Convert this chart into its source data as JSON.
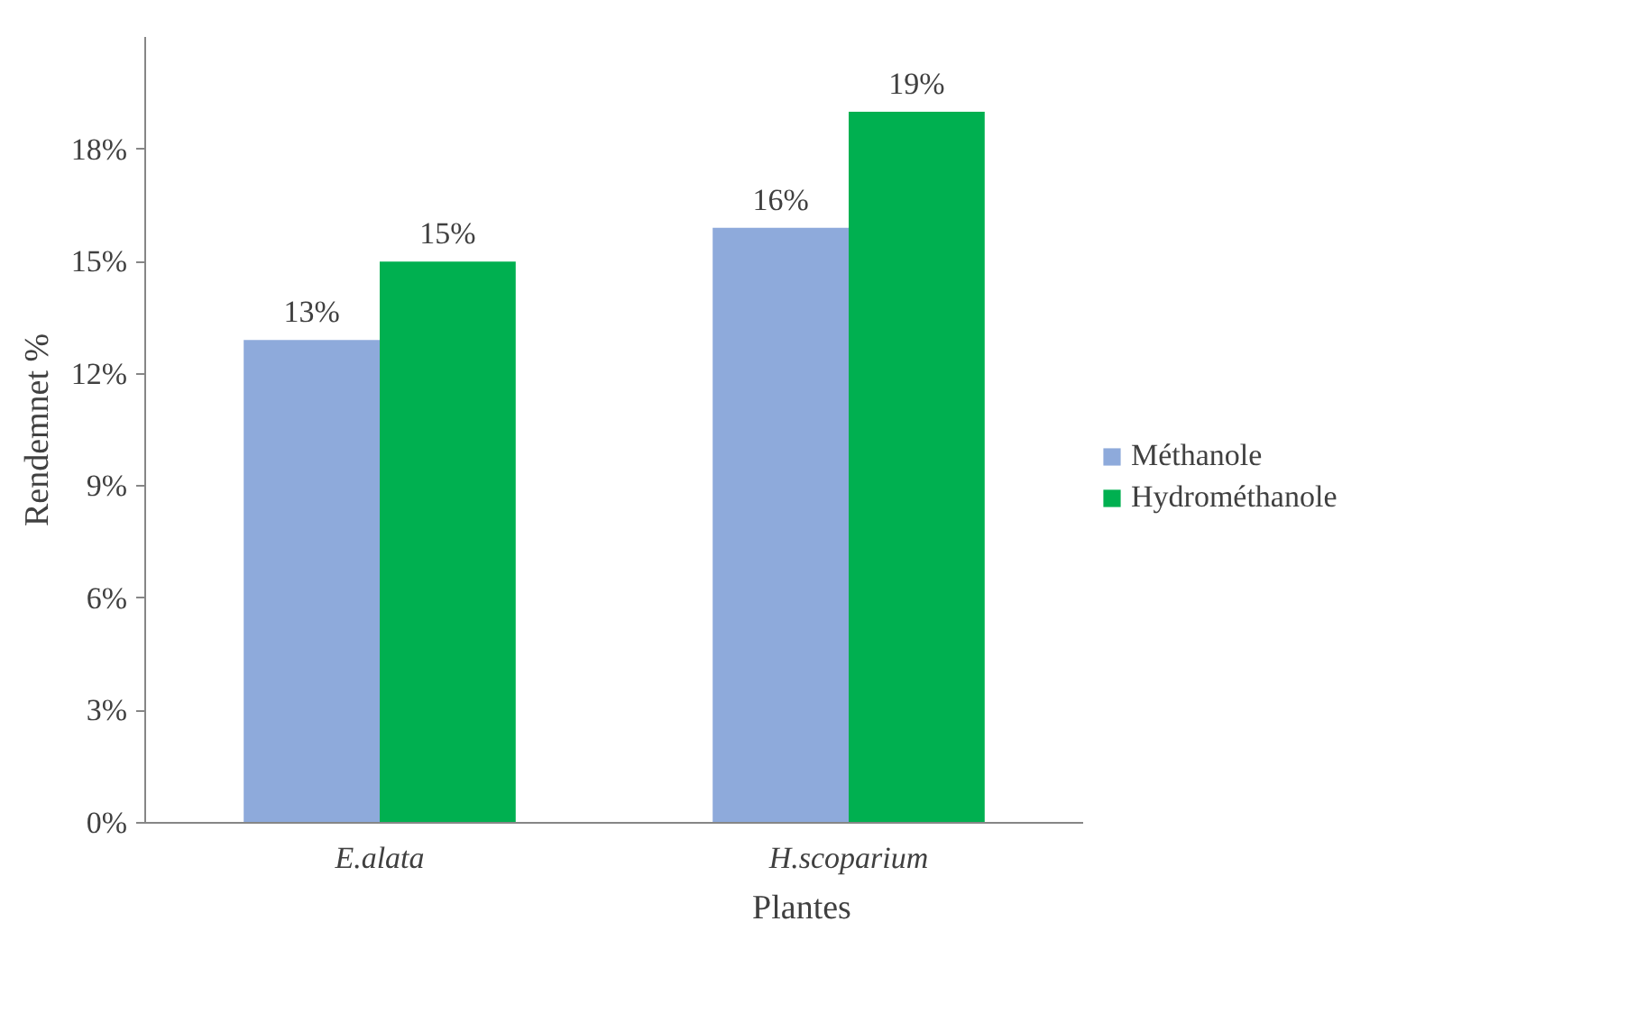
{
  "chart_data": {
    "type": "bar",
    "xlabel": "Plantes",
    "ylabel": "Rendemnet %",
    "categories": [
      "E.alata",
      "H.scoparium"
    ],
    "series": [
      {
        "name": "Méthanole",
        "color": "#8eaadb",
        "values": [
          12.9,
          15.9
        ],
        "value_labels": [
          "13%",
          "16%"
        ]
      },
      {
        "name": "Hydrométhanole",
        "color": "#00b050",
        "values": [
          15,
          19
        ],
        "value_labels": [
          "15%",
          "19%"
        ]
      }
    ],
    "ylim": [
      0,
      21
    ],
    "yticks": [
      {
        "value": 0,
        "label": "0%"
      },
      {
        "value": 3,
        "label": "3%"
      },
      {
        "value": 6,
        "label": "6%"
      },
      {
        "value": 9,
        "label": "9%"
      },
      {
        "value": 12,
        "label": "12%"
      },
      {
        "value": 15,
        "label": "15%"
      },
      {
        "value": 18,
        "label": "18%"
      }
    ],
    "grid": false,
    "legend": "right"
  }
}
